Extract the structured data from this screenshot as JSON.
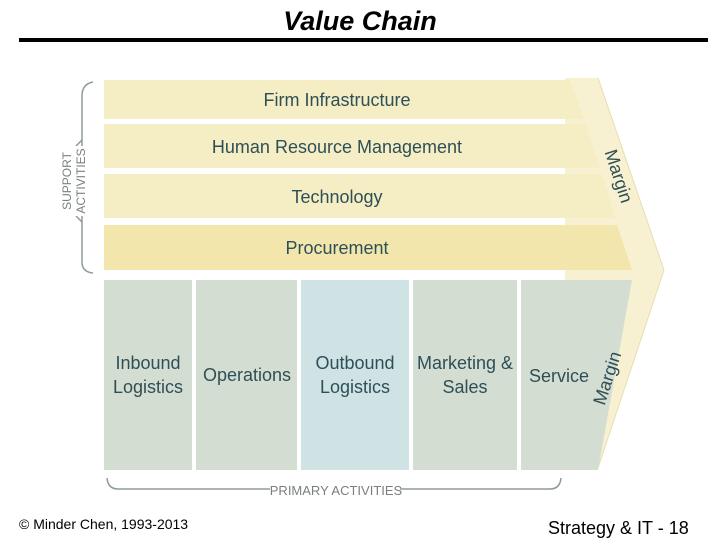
{
  "slide": {
    "title": "Value Chain",
    "footer_left": "© Minder Chen, 1993-2013",
    "footer_right": "Strategy & IT - 18"
  },
  "diagram": {
    "support_label_line1": "SUPPORT",
    "support_label_line2": "ACTIVITIES",
    "support_activities": [
      "Firm Infrastructure",
      "Human Resource Management",
      "Technology",
      "Procurement"
    ],
    "primary_activities": [
      {
        "line1": "Inbound",
        "line2": "Logistics"
      },
      {
        "line1": "Operations",
        "line2": ""
      },
      {
        "line1": "Outbound",
        "line2": "Logistics"
      },
      {
        "line1": "Marketing &",
        "line2": "Sales"
      },
      {
        "line1": "Service",
        "line2": ""
      }
    ],
    "primary_label": "PRIMARY ACTIVITIES",
    "margin_upper": "Margin",
    "margin_lower": "Margin",
    "colors": {
      "support_band": "#f5eec4",
      "procurement_band": "#f2e6ad",
      "primary_default": "#d4ddd1",
      "primary_highlight": "#cfe3e5",
      "margin_wedge": "#f8f1d1",
      "text": "#2f4f57"
    }
  }
}
